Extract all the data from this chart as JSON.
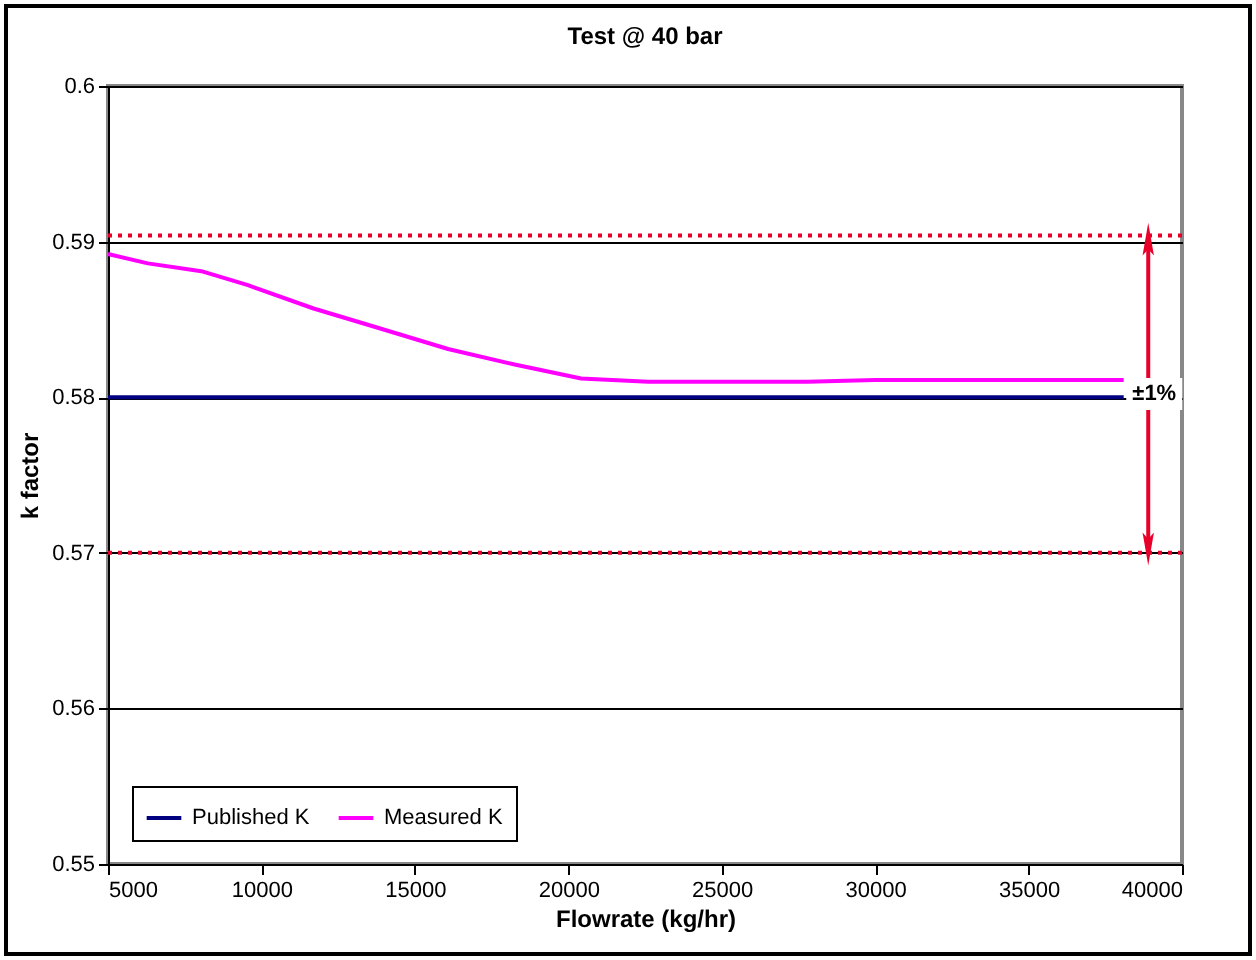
{
  "chart_data": {
    "type": "line",
    "title": "Test @ 40 bar",
    "xlabel": "Flowrate (kg/hr)",
    "ylabel": "k factor",
    "xlim": [
      5000,
      40000
    ],
    "xticks": [
      5000,
      10000,
      15000,
      20000,
      25000,
      30000,
      35000,
      40000
    ],
    "ylim": [
      0.55,
      0.6
    ],
    "yticks": [
      0.55,
      0.56,
      0.57,
      0.58,
      0.59,
      0.6
    ],
    "grid": "y",
    "legend": "bottom left",
    "marker": "none",
    "line_style": "solid",
    "series": [
      {
        "name": "Published K",
        "color": "#000080",
        "x": [
          5000,
          38100
        ],
        "values": [
          0.58,
          0.58
        ]
      },
      {
        "name": "Measured K",
        "color": "#ff00ff",
        "x": [
          5000,
          6300,
          8040,
          9560,
          11700,
          13900,
          16080,
          18250,
          20420,
          22600,
          27800,
          30000,
          38100
        ],
        "values": [
          0.5892,
          0.5886,
          0.5881,
          0.5872,
          0.5857,
          0.5844,
          0.5831,
          0.5821,
          0.5812,
          0.581,
          0.581,
          0.5811,
          0.5811
        ]
      }
    ],
    "ref_lines": [
      {
        "axis": "y",
        "value": 0.5904,
        "color": "#e8002a",
        "line_style": "dotted"
      },
      {
        "axis": "y",
        "value": 0.57,
        "color": "#e8002a",
        "line_style": "dotted"
      }
    ],
    "annotations": [
      {
        "text": "±1%",
        "x": 38900,
        "y": 0.5904
      }
    ]
  }
}
